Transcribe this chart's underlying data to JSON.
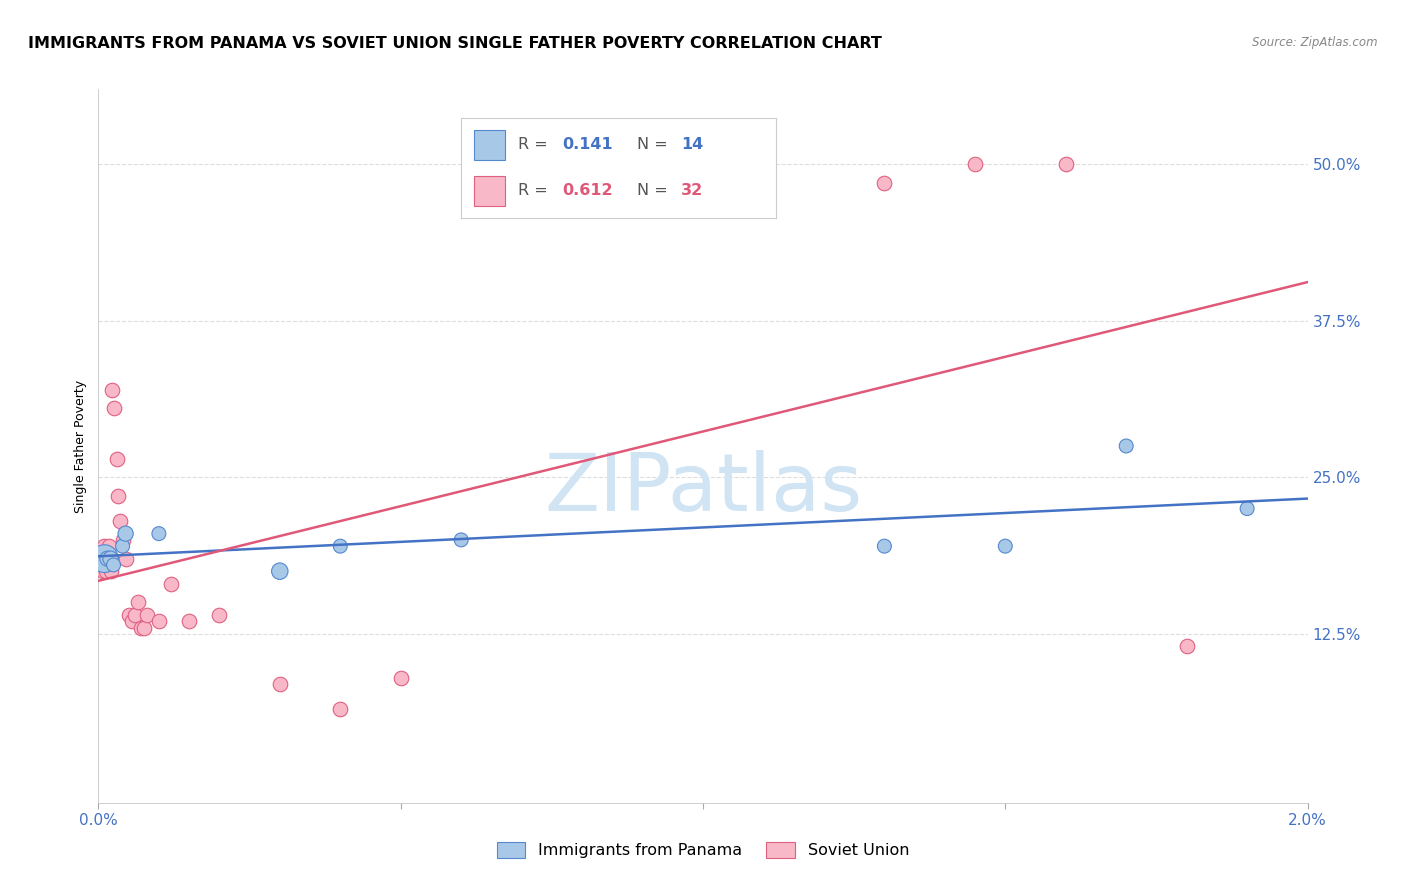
{
  "title": "IMMIGRANTS FROM PANAMA VS SOVIET UNION SINGLE FATHER POVERTY CORRELATION CHART",
  "source": "Source: ZipAtlas.com",
  "ylabel": "Single Father Poverty",
  "right_yticks": [
    0.125,
    0.25,
    0.375,
    0.5
  ],
  "right_yticklabels": [
    "12.5%",
    "25.0%",
    "37.5%",
    "50.0%"
  ],
  "xlim": [
    0.0,
    0.02
  ],
  "ylim": [
    -0.01,
    0.56
  ],
  "panama_R": 0.141,
  "panama_N": 14,
  "soviet_R": 0.612,
  "soviet_N": 32,
  "panama_color": "#A8C8E8",
  "soviet_color": "#F8B8C8",
  "panama_edge_color": "#5588CC",
  "soviet_edge_color": "#E06080",
  "panama_line_color": "#4472C4",
  "soviet_line_color": "#E05878",
  "watermark_text": "ZIPatlas",
  "watermark_color": "#D0E4F4",
  "legend_label_panama": "Immigrants from Panama",
  "legend_label_soviet": "Soviet Union",
  "panama_x": [
    0.0001,
    0.00015,
    0.0002,
    0.00025,
    0.0004,
    0.00045,
    0.001,
    0.003,
    0.004,
    0.006,
    0.013,
    0.015,
    0.017,
    0.019
  ],
  "panama_y": [
    0.185,
    0.185,
    0.185,
    0.18,
    0.195,
    0.205,
    0.205,
    0.175,
    0.195,
    0.2,
    0.195,
    0.195,
    0.275,
    0.225
  ],
  "panama_size": [
    400,
    120,
    120,
    100,
    100,
    120,
    100,
    140,
    100,
    100,
    100,
    100,
    100,
    100
  ],
  "soviet_x": [
    5e-05,
    7e-05,
    0.0001,
    0.00012,
    0.00015,
    0.00018,
    0.0002,
    0.00022,
    0.00025,
    0.0003,
    0.00032,
    0.00035,
    0.0004,
    0.00045,
    0.0005,
    0.00055,
    0.0006,
    0.00065,
    0.0007,
    0.00075,
    0.0008,
    0.001,
    0.0012,
    0.0015,
    0.002,
    0.003,
    0.004,
    0.005,
    0.013,
    0.0145,
    0.016,
    0.018
  ],
  "soviet_y": [
    0.185,
    0.175,
    0.195,
    0.175,
    0.185,
    0.195,
    0.175,
    0.32,
    0.305,
    0.265,
    0.235,
    0.215,
    0.2,
    0.185,
    0.14,
    0.135,
    0.14,
    0.15,
    0.13,
    0.13,
    0.14,
    0.135,
    0.165,
    0.135,
    0.14,
    0.085,
    0.065,
    0.09,
    0.485,
    0.5,
    0.5,
    0.115
  ],
  "grid_color": "#DDDDDD",
  "bg_color": "#FFFFFF",
  "title_fontsize": 11.5,
  "axis_label_fontsize": 9,
  "tick_fontsize": 11,
  "right_tick_color": "#4472C4",
  "bottom_tick_color": "#4472C4",
  "legend_box_color": "#CCCCCC",
  "source_color": "#888888"
}
